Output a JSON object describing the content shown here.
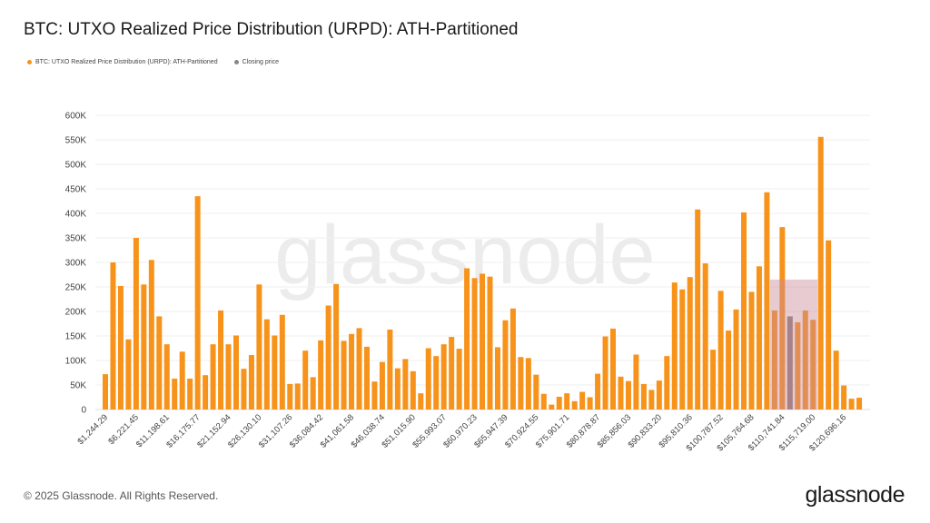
{
  "title": "BTC: UTXO Realized Price Distribution (URPD): ATH-Partitioned",
  "legend": [
    {
      "label": "BTC: UTXO Realized Price Distribution (URPD): ATH-Partitioned",
      "color": "#f7931a"
    },
    {
      "label": "Closing price",
      "color": "#888888"
    }
  ],
  "watermark": "glassnode",
  "footer": {
    "copyright": "© 2025 Glassnode. All Rights Reserved.",
    "logo": "glassnode"
  },
  "chart_data": {
    "type": "bar",
    "title": "BTC: UTXO Realized Price Distribution (URPD): ATH-Partitioned",
    "xlabel": "",
    "ylabel": "",
    "ylim": [
      0,
      600000
    ],
    "y_ticks": [
      "0",
      "50K",
      "100K",
      "150K",
      "200K",
      "250K",
      "300K",
      "350K",
      "400K",
      "450K",
      "500K",
      "550K",
      "600K"
    ],
    "x_tick_labels": [
      "$1,244.29",
      "$6,221.45",
      "$11,198.61",
      "$16,175.77",
      "$21,152.94",
      "$26,130.10",
      "$31,107.26",
      "$36,084.42",
      "$41,061.58",
      "$46,038.74",
      "$51,015.90",
      "$55,993.07",
      "$60,970.23",
      "$65,947.39",
      "$70,924.55",
      "$75,901.71",
      "$80,878.87",
      "$85,856.03",
      "$90,833.20",
      "$95,810.36",
      "$100,787.52",
      "$105,764.68",
      "$110,741.84",
      "$115,719.00",
      "$120,696.16"
    ],
    "bin_width": 1244.29,
    "grid": true,
    "legend_position": "top-left",
    "closing_price_bin_index": 89,
    "shaded_range": {
      "from_bin_index": 87,
      "to_bin_index": 92,
      "y_max": 265000,
      "color": "#c98b98"
    },
    "series": [
      {
        "name": "BTC: UTXO Realized Price Distribution (URPD): ATH-Partitioned",
        "values": [
          72000,
          300000,
          252000,
          143000,
          350000,
          255000,
          305000,
          190000,
          133000,
          63000,
          118000,
          63000,
          435000,
          70000,
          133000,
          202000,
          133000,
          151000,
          83000,
          111000,
          255000,
          184000,
          151000,
          193000,
          52000,
          53000,
          120000,
          66000,
          141000,
          212000,
          256000,
          140000,
          154000,
          166000,
          128000,
          57000,
          97000,
          163000,
          84000,
          103000,
          78000,
          33000,
          125000,
          109000,
          133000,
          148000,
          124000,
          288000,
          268000,
          277000,
          271000,
          127000,
          182000,
          206000,
          107000,
          105000,
          71000,
          32000,
          10000,
          26000,
          33000,
          17000,
          36000,
          25000,
          73000,
          149000,
          165000,
          67000,
          58000,
          112000,
          52000,
          40000,
          59000,
          109000,
          259000,
          245000,
          270000,
          408000,
          298000,
          122000,
          242000,
          161000,
          204000,
          402000,
          240000,
          292000,
          443000,
          202000,
          372000,
          190000,
          178000,
          202000,
          183000,
          556000,
          345000,
          120000,
          49000,
          22000,
          24000
        ]
      }
    ]
  }
}
